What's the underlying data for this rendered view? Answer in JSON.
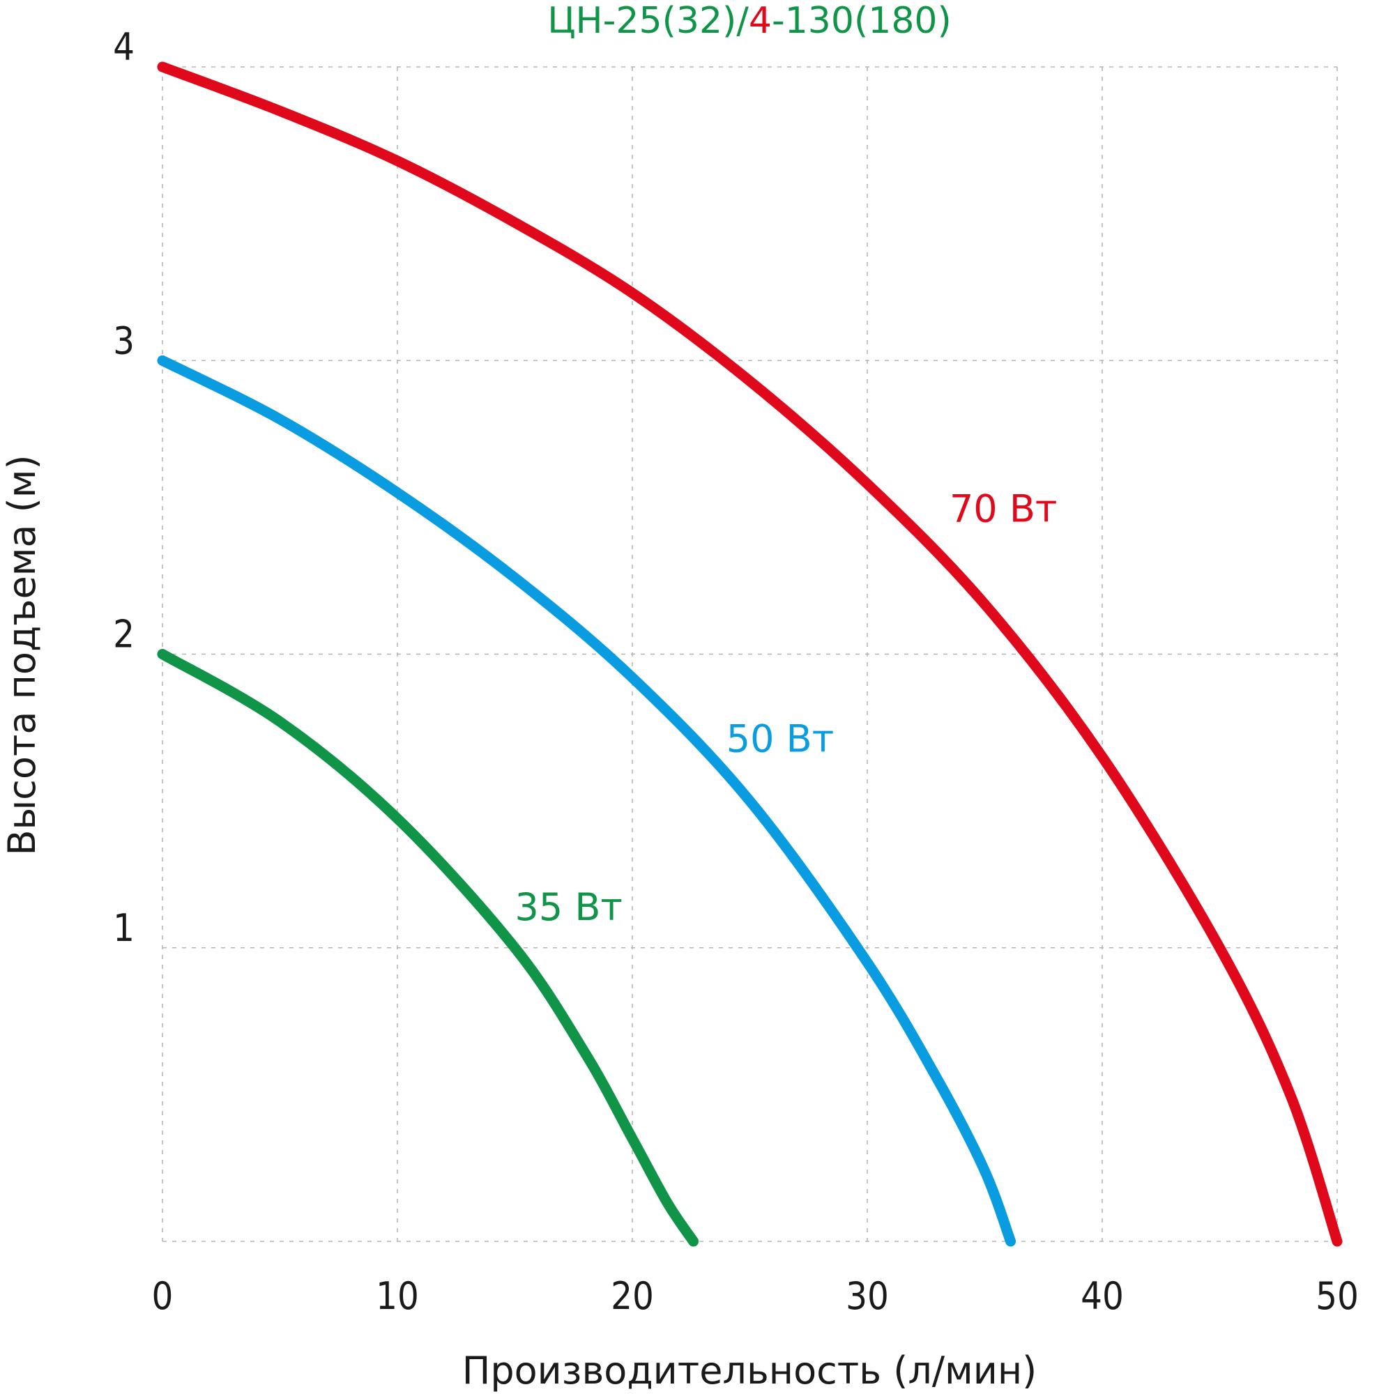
{
  "chart_data": {
    "type": "line",
    "title": {
      "parts": [
        {
          "text": "ЦН-25(32)/",
          "color": "#0f9448"
        },
        {
          "text": "4",
          "color": "#e0091b"
        },
        {
          "text": "-130(180)",
          "color": "#0f9448"
        }
      ]
    },
    "xlabel": "Производительность (л/мин)",
    "ylabel": "Высота подъема (м)",
    "xlim": [
      0,
      50
    ],
    "ylim": [
      0,
      4
    ],
    "xticks": [
      "0",
      "10",
      "20",
      "30",
      "40",
      "50"
    ],
    "yticks": [
      "1",
      "2",
      "3",
      "4"
    ],
    "grid": true,
    "series": [
      {
        "name": "35 Вт",
        "color": "#0f9448",
        "x": [
          0,
          5,
          10,
          15,
          18,
          20,
          21.5,
          22.6
        ],
        "y": [
          2.0,
          1.77,
          1.44,
          1.0,
          0.64,
          0.35,
          0.13,
          0.0
        ]
      },
      {
        "name": "50 Вт",
        "color": "#0a9ce0",
        "x": [
          0,
          5,
          10,
          15,
          20,
          25,
          30,
          33,
          35,
          36.1
        ],
        "y": [
          3.0,
          2.8,
          2.55,
          2.26,
          1.92,
          1.5,
          0.95,
          0.55,
          0.24,
          0.0
        ]
      },
      {
        "name": "70 Вт",
        "color": "#e0091b",
        "x": [
          0,
          5,
          10,
          15,
          20,
          25,
          30,
          35,
          40,
          45,
          48,
          50
        ],
        "y": [
          4.0,
          3.85,
          3.68,
          3.47,
          3.23,
          2.93,
          2.58,
          2.17,
          1.65,
          1.0,
          0.5,
          0.0
        ]
      }
    ]
  }
}
